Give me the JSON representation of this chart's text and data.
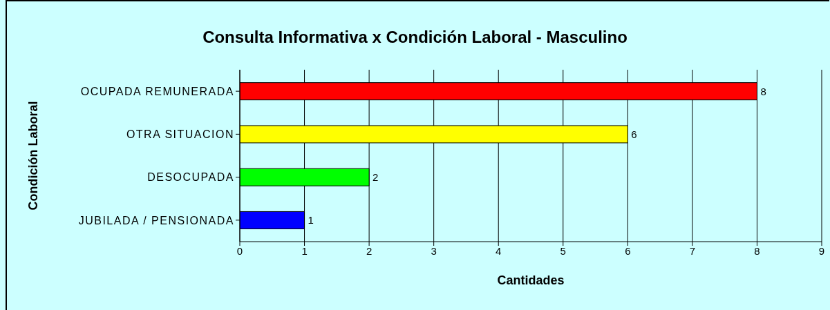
{
  "chart_data": {
    "type": "bar",
    "orientation": "horizontal",
    "title": "Consulta Informativa x Condición Laboral - Masculino",
    "xlabel": "Cantidades",
    "ylabel": "Condición Laboral",
    "categories": [
      "OCUPADA REMUNERADA",
      "OTRA SITUACION",
      "DESOCUPADA",
      "JUBILADA / PENSIONADA"
    ],
    "values": [
      8,
      6,
      2,
      1
    ],
    "colors": [
      "#ff0000",
      "#ffff00",
      "#00ff00",
      "#0000ff"
    ],
    "xlim": [
      0,
      9
    ],
    "xticks": [
      0,
      1,
      2,
      3,
      4,
      5,
      6,
      7,
      8,
      9
    ],
    "grid": "x",
    "data_labels": true
  }
}
